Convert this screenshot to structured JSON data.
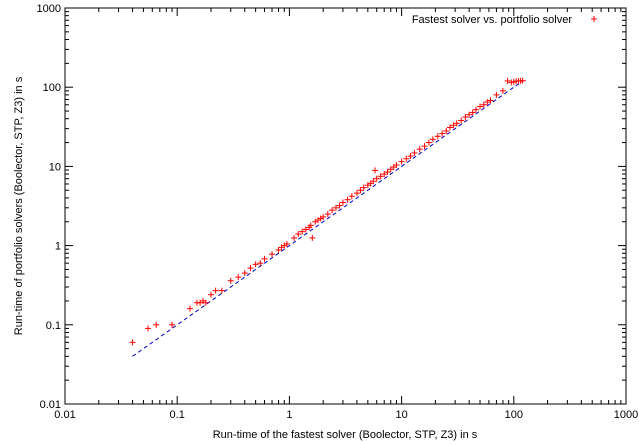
{
  "chart_data": {
    "type": "scatter",
    "title": "",
    "xlabel": "Run-time of the fastest solver (Boolector, STP, Z3) in s",
    "ylabel": "Run-time of portfolio solvers (Boolector, STP, Z3) in s",
    "xscale": "log",
    "yscale": "log",
    "xlim": [
      0.01,
      1000
    ],
    "ylim": [
      0.01,
      1000
    ],
    "x_tick_labels": [
      "0.01",
      "0.1",
      "1",
      "10",
      "100",
      "1000"
    ],
    "y_tick_labels": [
      "0.01",
      "0.1",
      "1",
      "10",
      "100",
      "1000"
    ],
    "grid": false,
    "legend_position": "top-right",
    "colors": {
      "points": "#ff0000",
      "reference_line": "#0000cc"
    },
    "series": [
      {
        "name": "Fastest solver vs. portfolio solver",
        "marker": "+",
        "points": [
          [
            0.04,
            0.06
          ],
          [
            0.055,
            0.09
          ],
          [
            0.065,
            0.1
          ],
          [
            0.09,
            0.1
          ],
          [
            0.13,
            0.16
          ],
          [
            0.15,
            0.19
          ],
          [
            0.16,
            0.19
          ],
          [
            0.17,
            0.2
          ],
          [
            0.18,
            0.19
          ],
          [
            0.2,
            0.24
          ],
          [
            0.22,
            0.27
          ],
          [
            0.25,
            0.27
          ],
          [
            0.3,
            0.36
          ],
          [
            0.35,
            0.4
          ],
          [
            0.4,
            0.45
          ],
          [
            0.45,
            0.52
          ],
          [
            0.5,
            0.58
          ],
          [
            0.55,
            0.6
          ],
          [
            0.6,
            0.68
          ],
          [
            0.7,
            0.78
          ],
          [
            0.8,
            0.88
          ],
          [
            0.85,
            0.95
          ],
          [
            0.9,
            1.0
          ],
          [
            0.95,
            1.05
          ],
          [
            1.1,
            1.25
          ],
          [
            1.2,
            1.4
          ],
          [
            1.3,
            1.5
          ],
          [
            1.4,
            1.6
          ],
          [
            1.5,
            1.7
          ],
          [
            1.55,
            1.8
          ],
          [
            1.6,
            1.25
          ],
          [
            1.7,
            2.0
          ],
          [
            1.8,
            2.1
          ],
          [
            1.9,
            2.2
          ],
          [
            2.0,
            2.3
          ],
          [
            2.2,
            2.5
          ],
          [
            2.4,
            2.8
          ],
          [
            2.6,
            3.0
          ],
          [
            2.8,
            3.2
          ],
          [
            3.0,
            3.5
          ],
          [
            3.3,
            3.8
          ],
          [
            3.6,
            4.2
          ],
          [
            4.0,
            4.6
          ],
          [
            4.3,
            5.0
          ],
          [
            4.6,
            5.4
          ],
          [
            5.0,
            5.8
          ],
          [
            5.3,
            6.1
          ],
          [
            5.6,
            6.5
          ],
          [
            5.8,
            8.9
          ],
          [
            6.0,
            7.0
          ],
          [
            6.5,
            7.5
          ],
          [
            7.0,
            8.0
          ],
          [
            7.5,
            8.5
          ],
          [
            8.0,
            9.2
          ],
          [
            8.5,
            9.8
          ],
          [
            9.0,
            10.4
          ],
          [
            10.0,
            11.5
          ],
          [
            11.0,
            12.5
          ],
          [
            12.0,
            13.5
          ],
          [
            13.0,
            14.8
          ],
          [
            14.5,
            16.5
          ],
          [
            16.0,
            18.0
          ],
          [
            17.5,
            20.0
          ],
          [
            19.0,
            22.0
          ],
          [
            21.0,
            24.0
          ],
          [
            23.0,
            26.0
          ],
          [
            25.0,
            28.0
          ],
          [
            27.0,
            31.0
          ],
          [
            29.0,
            33.0
          ],
          [
            31.0,
            35.0
          ],
          [
            34.0,
            38.0
          ],
          [
            37.0,
            42.0
          ],
          [
            40.0,
            45.0
          ],
          [
            43.0,
            48.0
          ],
          [
            46.0,
            52.0
          ],
          [
            50.0,
            57.0
          ],
          [
            54.0,
            60.0
          ],
          [
            58.0,
            65.0
          ],
          [
            62.0,
            68.0
          ],
          [
            70.0,
            80.0
          ],
          [
            80.0,
            90.0
          ],
          [
            88.0,
            120.0
          ],
          [
            95.0,
            115.0
          ],
          [
            100.0,
            117.0
          ],
          [
            105.0,
            119.0
          ],
          [
            110.0,
            120.0
          ],
          [
            115.0,
            120.0
          ],
          [
            120.0,
            121.0
          ]
        ]
      },
      {
        "name": "",
        "type": "line",
        "style": "dashed",
        "points": [
          [
            0.04,
            0.04
          ],
          [
            120,
            120
          ]
        ]
      }
    ]
  }
}
